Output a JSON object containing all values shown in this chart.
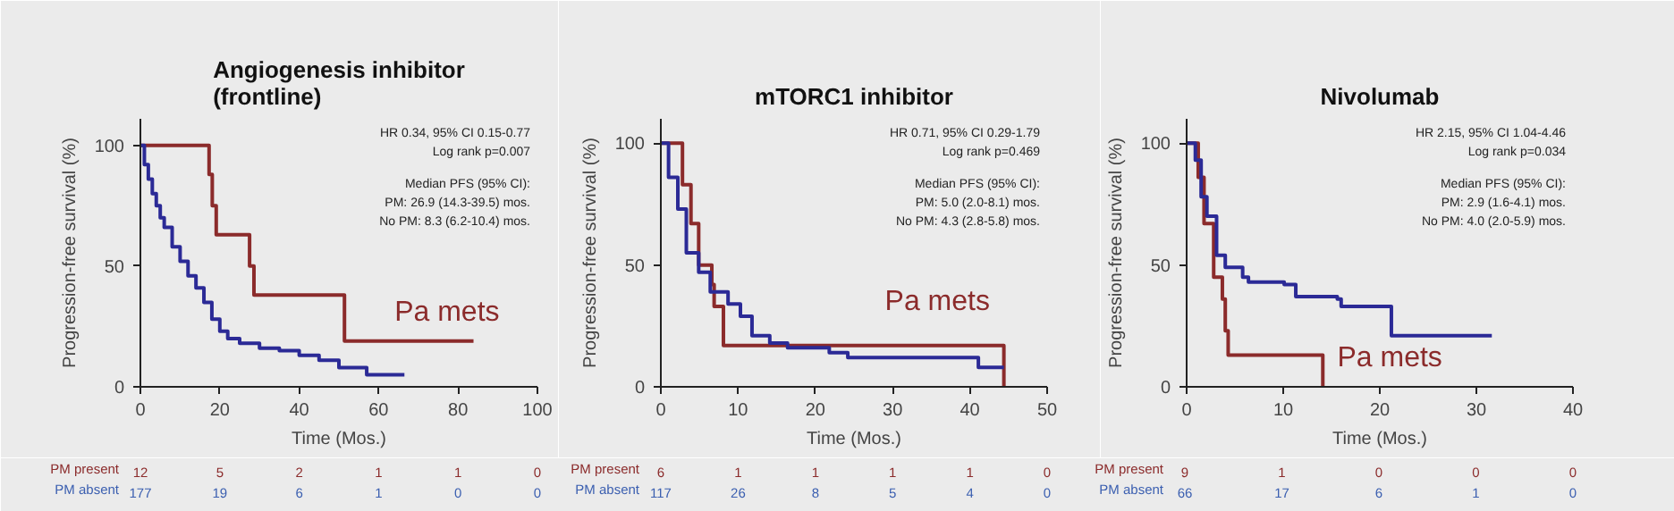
{
  "chart_data": [
    {
      "type": "step",
      "title": "Angiogenesis inhibitor (frontline)",
      "xlabel": "Time (Mos.)",
      "ylabel": "Progression-free survival (%)",
      "xlim": [
        0,
        100
      ],
      "ylim": [
        0,
        111
      ],
      "xticks": [
        0,
        20,
        40,
        60,
        80,
        100
      ],
      "yticks": [
        0,
        50,
        100
      ],
      "grid": false,
      "series": [
        {
          "name": "Pa mets",
          "color": "#8b2b2b",
          "x": [
            0,
            17.3,
            18.1,
            19.1,
            27.5,
            28.6,
            51.4,
            83.9
          ],
          "values": [
            100,
            88,
            75,
            63,
            50,
            38,
            19,
            19
          ]
        },
        {
          "color": "#2b2a96",
          "x": [
            0,
            1,
            2,
            3,
            4,
            5,
            6,
            8,
            10,
            12,
            14,
            16,
            18,
            20,
            22,
            25,
            30,
            35,
            40,
            45,
            50,
            57,
            66.5
          ],
          "values": [
            100,
            92,
            86,
            80,
            75,
            70,
            66,
            58,
            52,
            46,
            41,
            35,
            28,
            23,
            20,
            18,
            16,
            15,
            13,
            11,
            8,
            5,
            5
          ]
        }
      ],
      "annotations": [
        "HR 0.34, 95% CI 0.15-0.77",
        "Log rank p=0.007",
        "Median PFS (95% CI):",
        "PM: 26.9 (14.3-39.5) mos.",
        "No PM: 8.3 (6.2-10.4) mos.",
        "PM present",
        "12",
        "5",
        "2",
        "1",
        "1",
        "0",
        "PM absent",
        "177",
        "19",
        "6",
        "1",
        "0",
        "0"
      ]
    },
    {
      "type": "step",
      "title": "mTORC1 inhibitor",
      "xlabel": "Time (Mos.)",
      "ylabel": "Progression-free survival (%)",
      "xlim": [
        0,
        50
      ],
      "ylim": [
        0,
        110
      ],
      "xticks": [
        0,
        10,
        20,
        30,
        40,
        50
      ],
      "yticks": [
        0,
        50,
        100
      ],
      "grid": false,
      "series": [
        {
          "name": "Pa mets",
          "color": "#8b2b2b",
          "x": [
            0,
            2.8,
            3.9,
            4.9,
            6.6,
            6.9,
            8.1,
            44.4
          ],
          "values": [
            100,
            83,
            67,
            50,
            42,
            33,
            17,
            0
          ]
        },
        {
          "color": "#2b2a96",
          "x": [
            0,
            1,
            2.2,
            3.3,
            4.9,
            6.4,
            8.7,
            10.3,
            11.8,
            14.1,
            16.4,
            21.8,
            24.2,
            40.7,
            41.1,
            44.4
          ],
          "values": [
            100,
            86,
            73,
            55,
            47,
            39,
            34,
            29,
            21,
            18,
            16,
            14,
            12,
            12,
            8,
            8
          ]
        }
      ],
      "annotations": [
        "HR 0.71, 95% CI 0.29-1.79",
        "Log rank p=0.469",
        "Median PFS (95% CI):",
        "PM: 5.0 (2.0-8.1) mos.",
        "No PM: 4.3 (2.8-5.8) mos.",
        "PM present",
        "6",
        "1",
        "1",
        "1",
        "1",
        "0",
        "PM absent",
        "117",
        "26",
        "8",
        "5",
        "4",
        "0"
      ]
    },
    {
      "type": "step",
      "title": "Nivolumab",
      "xlabel": "Time (Mos.)",
      "ylabel": "Progression-free survival (%)",
      "xlim": [
        0,
        40
      ],
      "ylim": [
        0,
        110
      ],
      "xticks": [
        0,
        10,
        20,
        30,
        40
      ],
      "yticks": [
        0,
        50,
        100
      ],
      "grid": false,
      "series": [
        {
          "name": "Pa mets",
          "color": "#8b2b2b",
          "x": [
            0,
            1.2,
            1.8,
            2.8,
            3.7,
            4.0,
            4.3,
            14.1
          ],
          "values": [
            100,
            86,
            67,
            45,
            36,
            23,
            13,
            0
          ]
        },
        {
          "color": "#2b2a96",
          "x": [
            0,
            0.9,
            1.5,
            2.1,
            3.1,
            4,
            5.8,
            6.4,
            10.1,
            11.3,
            15.6,
            16,
            20.9,
            21.2,
            31.6
          ],
          "values": [
            100,
            93,
            78,
            70,
            54,
            49,
            45,
            43,
            42,
            37,
            36,
            33,
            33,
            21,
            21
          ]
        }
      ],
      "annotations": [
        "HR 2.15, 95% CI 1.04-4.46",
        "Log rank p=0.034",
        "Median PFS (95% CI):",
        "PM: 2.9 (1.6-4.1) mos.",
        "No PM: 4.0 (2.0-5.9) mos.",
        "PM present",
        "9",
        "1",
        "0",
        "0",
        "0",
        "PM absent",
        "66",
        "17",
        "6",
        "1",
        "0"
      ]
    }
  ]
}
